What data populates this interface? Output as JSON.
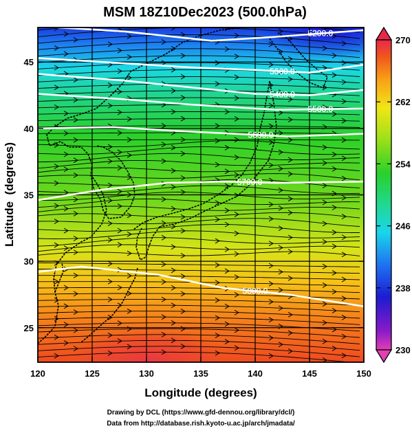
{
  "title": "MSM 18Z10Dec2023 (500.0hPa)",
  "x_axis": {
    "label": "Longitude (degrees)",
    "range": [
      120,
      150
    ],
    "ticks": [
      {
        "value": 120,
        "label": "120"
      },
      {
        "value": 125,
        "label": "125"
      },
      {
        "value": 130,
        "label": "130"
      },
      {
        "value": 135,
        "label": "135"
      },
      {
        "value": 140,
        "label": "140"
      },
      {
        "value": 145,
        "label": "145"
      },
      {
        "value": 150,
        "label": "150"
      }
    ]
  },
  "y_axis": {
    "label": "Latitude  (degrees)",
    "range": [
      22.4,
      47.6
    ],
    "ticks": [
      {
        "value": 25,
        "label": "25"
      },
      {
        "value": 30,
        "label": "30"
      },
      {
        "value": 35,
        "label": "35"
      },
      {
        "value": 40,
        "label": "40"
      },
      {
        "value": 45,
        "label": "45"
      }
    ]
  },
  "colorbar": {
    "range": [
      230,
      270
    ],
    "ticks": [
      {
        "value": 230,
        "label": "230"
      },
      {
        "value": 238,
        "label": "238"
      },
      {
        "value": 246,
        "label": "246"
      },
      {
        "value": 254,
        "label": "254"
      },
      {
        "value": 262,
        "label": "262"
      },
      {
        "value": 270,
        "label": "270"
      }
    ],
    "colors": [
      "#e23fb4",
      "#8a1ac8",
      "#1c1cd0",
      "#1f6ff0",
      "#1ad6ea",
      "#20d890",
      "#2ad02a",
      "#9ee018",
      "#f0e616",
      "#f8a216",
      "#f0521e",
      "#e8284a"
    ]
  },
  "contours": [
    {
      "label": "5200.0",
      "lat": [
        47.7,
        47.3,
        46.6,
        46.9,
        47.4
      ],
      "lon": [
        120,
        128,
        136,
        142,
        150
      ]
    },
    {
      "label": "5300.0",
      "lat": [
        45.3,
        44.9,
        44.6,
        44.4,
        44.2,
        44.8
      ],
      "lon": [
        120,
        128,
        134,
        140,
        145,
        150
      ]
    },
    {
      "label": "5400.0",
      "lat": [
        44.1,
        43.6,
        43.1,
        42.6,
        42.5,
        42.9
      ],
      "lon": [
        120,
        128,
        134,
        140,
        145,
        150
      ]
    },
    {
      "label": "5500.0",
      "lat": [
        42.6,
        42.2,
        41.8,
        41.4,
        41.5
      ],
      "lon": [
        120,
        128,
        134,
        142,
        150
      ]
    },
    {
      "label": "5600.0",
      "lat": [
        40.0,
        40.1,
        39.8,
        39.6,
        39.4,
        39.6
      ],
      "lon": [
        120,
        127,
        133,
        138,
        143,
        150
      ]
    },
    {
      "label": "5700.0",
      "lat": [
        34.6,
        35.4,
        35.9,
        36.0,
        35.9,
        36.0
      ],
      "lon": [
        120,
        126,
        132,
        137,
        142,
        150
      ]
    },
    {
      "label": "5800.0",
      "lat": [
        29.2,
        29.6,
        29.0,
        28.0,
        27.5,
        26.6
      ],
      "lon": [
        120,
        124,
        131,
        137,
        143,
        150
      ]
    }
  ],
  "footer": {
    "credit": "Drawing by DCL (https://www.gfd-dennou.org/library/dcl/)",
    "source": "Data from http://database.rish.kyoto-u.ac.jp/arch/jmadata/"
  }
}
